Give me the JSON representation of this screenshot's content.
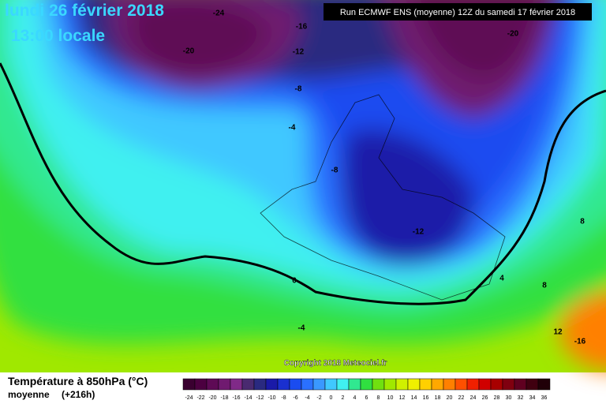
{
  "header": {
    "date": "lundi 26 février 2018",
    "time": "13:00 locale",
    "run": "Run ECMWF ENS (moyenne) 12Z du samedi 17 février 2018"
  },
  "map": {
    "contour_labels": [
      -24,
      -16,
      -20,
      -12,
      -8,
      -4,
      -8,
      -12,
      -20,
      0,
      -4,
      4,
      8,
      8,
      12,
      -16
    ],
    "copyright": "Copyright 2018 Meteociel.fr"
  },
  "footer": {
    "title": "Température à 850hPa (°C)",
    "mode": "moyenne",
    "lead": "(+216h)",
    "scale": [
      {
        "value": -24,
        "color": "#3a0030"
      },
      {
        "value": -22,
        "color": "#4c0040"
      },
      {
        "value": -20,
        "color": "#5e0a55"
      },
      {
        "value": -18,
        "color": "#701a70"
      },
      {
        "value": -16,
        "color": "#802a88"
      },
      {
        "value": -14,
        "color": "#4a2a70"
      },
      {
        "value": -12,
        "color": "#2a2a80"
      },
      {
        "value": -10,
        "color": "#1a1aa8"
      },
      {
        "value": -8,
        "color": "#1a30d0"
      },
      {
        "value": -6,
        "color": "#1a4cf0"
      },
      {
        "value": -4,
        "color": "#2a70ff"
      },
      {
        "value": -2,
        "color": "#3a98ff"
      },
      {
        "value": 0,
        "color": "#40c8ff"
      },
      {
        "value": 2,
        "color": "#40f0f0"
      },
      {
        "value": 4,
        "color": "#30e890"
      },
      {
        "value": 6,
        "color": "#30e040"
      },
      {
        "value": 8,
        "color": "#70e010"
      },
      {
        "value": 10,
        "color": "#a0e800"
      },
      {
        "value": 12,
        "color": "#d0f000"
      },
      {
        "value": 14,
        "color": "#f0f000"
      },
      {
        "value": 16,
        "color": "#ffd000"
      },
      {
        "value": 18,
        "color": "#ffa800"
      },
      {
        "value": 20,
        "color": "#ff8000"
      },
      {
        "value": 22,
        "color": "#ff5000"
      },
      {
        "value": 24,
        "color": "#f02000"
      },
      {
        "value": 26,
        "color": "#d00000"
      },
      {
        "value": 28,
        "color": "#a80000"
      },
      {
        "value": 30,
        "color": "#800010"
      },
      {
        "value": 32,
        "color": "#600020"
      },
      {
        "value": 34,
        "color": "#400010"
      },
      {
        "value": 36,
        "color": "#200008"
      }
    ]
  }
}
